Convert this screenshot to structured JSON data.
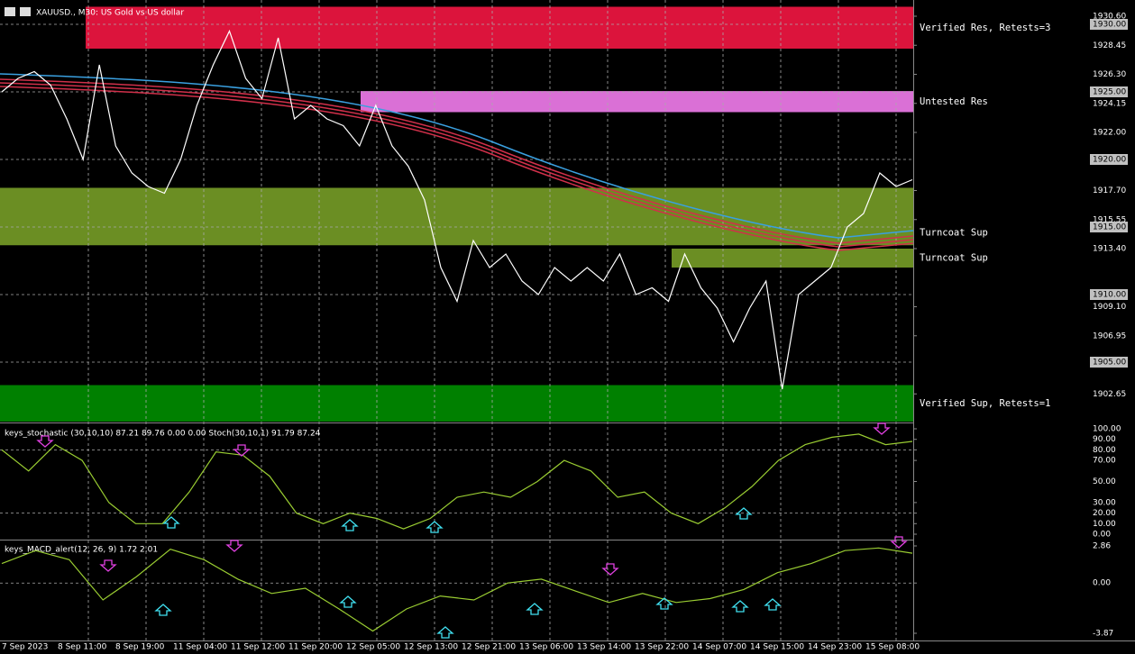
{
  "header": {
    "title": "XAUUSD., M30:  US Gold vs US dollar"
  },
  "price_axis": {
    "ylim": [
      1900.6,
      1931.4
    ],
    "ticks": [
      {
        "value": 1930.6,
        "label": "1930.60"
      },
      {
        "value": 1928.45,
        "label": "1928.45"
      },
      {
        "value": 1926.3,
        "label": "1926.30"
      },
      {
        "value": 1924.15,
        "label": "1924.15"
      },
      {
        "value": 1922,
        "label": "1922.00"
      },
      {
        "value": 1917.7,
        "label": "1917.70"
      },
      {
        "value": 1915.55,
        "label": "1915.55"
      },
      {
        "value": 1913.4,
        "label": "1913.40"
      },
      {
        "value": 1909.1,
        "label": "1909.10"
      },
      {
        "value": 1906.95,
        "label": "1906.95"
      },
      {
        "value": 1902.65,
        "label": "1902.65"
      }
    ],
    "levels": [
      {
        "value": 1930,
        "label": "1930.00"
      },
      {
        "value": 1925,
        "label": "1925.00"
      },
      {
        "value": 1920,
        "label": "1920.00"
      },
      {
        "value": 1915,
        "label": "1915.00"
      },
      {
        "value": 1910,
        "label": "1910.00"
      },
      {
        "value": 1905,
        "label": "1905.00"
      }
    ]
  },
  "zones": [
    {
      "label": "Verified Res, Retests=3",
      "top": 1931.3,
      "bottom": 1928.2,
      "color": "#dc143c"
    },
    {
      "label": "Untested Res",
      "top": 1925.06,
      "bottom": 1923.5,
      "color": "#da70d6"
    },
    {
      "label": "Turncoat Sup",
      "top": 1917.9,
      "bottom": 1913.65,
      "color": "#6b8e23"
    },
    {
      "label": "Turncoat Sup",
      "top": 1913.4,
      "bottom": 1912.0,
      "color": "#6b8e23"
    },
    {
      "label": "Verified Sup, Retests=1",
      "top": 1903.3,
      "bottom": 1900.6,
      "color": "#008000"
    }
  ],
  "price": {
    "close": [
      1925,
      1926,
      1926.5,
      1925.5,
      1923,
      1920,
      1927,
      1921,
      1919,
      1918,
      1917.5,
      1920,
      1924,
      1927,
      1929.5,
      1926,
      1924.5,
      1929,
      1923,
      1924,
      1923,
      1922.5,
      1921,
      1924,
      1921,
      1919.5,
      1917,
      1912,
      1909.5,
      1914,
      1912,
      1913,
      1911,
      1910,
      1912,
      1911,
      1912,
      1911,
      1913,
      1910,
      1910.5,
      1909.5,
      1913,
      1910.5,
      1909,
      1906.5,
      1909,
      1911,
      1903,
      1910,
      1911,
      1912,
      1915,
      1916,
      1919,
      1918,
      1918.5
    ]
  },
  "time_axis": {
    "labels": [
      "7 Sep 2023",
      "8 Sep 11:00",
      "8 Sep 19:00",
      "11 Sep 04:00",
      "11 Sep 12:00",
      "11 Sep 20:00",
      "12 Sep 05:00",
      "12 Sep 13:00",
      "12 Sep 21:00",
      "13 Sep 06:00",
      "13 Sep 14:00",
      "13 Sep 22:00",
      "14 Sep 07:00",
      "14 Sep 15:00",
      "14 Sep 23:00",
      "15 Sep 08:00"
    ]
  },
  "stochastic": {
    "label": "keys_stochastic (30,10,10) 87.21 89.76 0.00 0.00 Stoch(30,10,1) 91.79 87.24",
    "ylim": [
      0,
      100
    ],
    "ticks": [
      {
        "value": 100,
        "label": "100.00"
      },
      {
        "value": 90,
        "label": "90.00"
      },
      {
        "value": 80,
        "label": "80.00"
      },
      {
        "value": 70,
        "label": "70.00"
      },
      {
        "value": 50,
        "label": "50.00"
      },
      {
        "value": 30,
        "label": "30.00"
      },
      {
        "value": 20,
        "label": "20.00"
      },
      {
        "value": 10,
        "label": "10.00"
      },
      {
        "value": 0,
        "label": "0.00"
      }
    ],
    "values": [
      80,
      60,
      85,
      70,
      30,
      10,
      10,
      40,
      78,
      75,
      55,
      20,
      10,
      20,
      15,
      5,
      15,
      35,
      40,
      35,
      50,
      70,
      60,
      35,
      40,
      20,
      10,
      25,
      45,
      70,
      85,
      92,
      95,
      85,
      88
    ]
  },
  "macd": {
    "label": "keys_MACD_alert(12, 26, 9) 1.72 2.01",
    "ylim": [
      -3.87,
      2.86
    ],
    "ticks": [
      {
        "value": 2.86,
        "label": "2.86"
      },
      {
        "value": 0,
        "label": "0.00"
      },
      {
        "value": -3.87,
        "label": "-3.87"
      }
    ],
    "values": [
      1.5,
      2.5,
      1.8,
      -1.3,
      0.5,
      2.6,
      1.8,
      0.3,
      -0.8,
      -0.4,
      -2,
      -3.7,
      -2,
      -1,
      -1.3,
      0,
      0.3,
      -0.6,
      -1.5,
      -0.8,
      -1.5,
      -1.2,
      -0.5,
      0.8,
      1.5,
      2.5,
      2.7,
      2.3
    ]
  }
}
